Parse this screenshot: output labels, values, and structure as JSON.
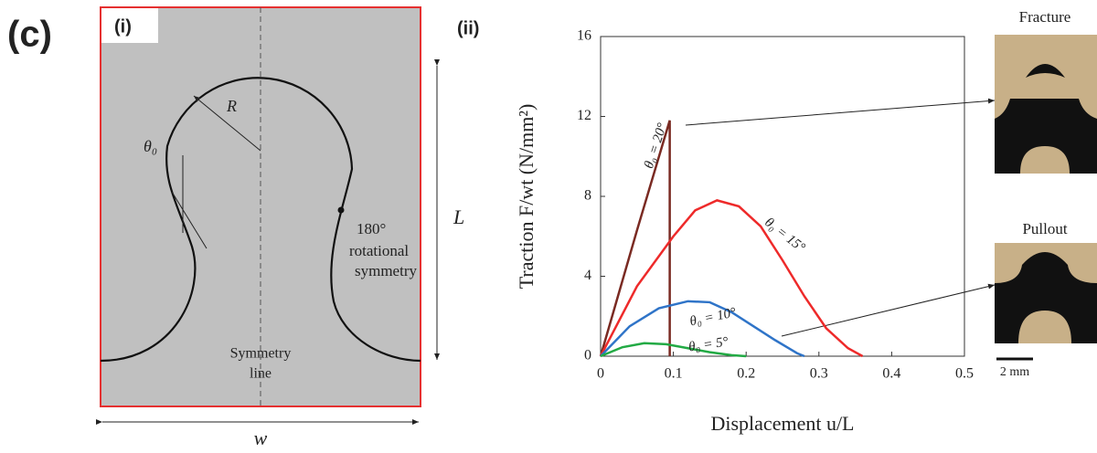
{
  "panel_label": "(c)",
  "diagram": {
    "label": "(i)",
    "radius_label": "R",
    "angle_label": "θ₀",
    "rotation_angle": "180°",
    "rotation_text_1": "rotational",
    "rotation_text_2": "symmetry",
    "symmetry_text_1": "Symmetry",
    "symmetry_text_2": "line",
    "height_label": "L",
    "width_label": "w"
  },
  "chart_data": {
    "type": "line",
    "label": "(ii)",
    "x_label": "Displacement u/L",
    "y_label": "Traction F/wt (N/mm²)",
    "xlim": [
      0,
      0.5
    ],
    "ylim": [
      0,
      16
    ],
    "xticks": [
      0,
      0.1,
      0.2,
      0.3,
      0.4,
      0.5
    ],
    "yticks": [
      0,
      4,
      8,
      12,
      16
    ],
    "series": [
      {
        "name": "θ₀ = 20°",
        "color": "#7a2a22",
        "x": [
          0,
          0.05,
          0.095,
          0.095
        ],
        "values": [
          0,
          6.3,
          11.8,
          0
        ]
      },
      {
        "name": "θ₀ = 15°",
        "color": "#ee2a2a",
        "x": [
          0,
          0.05,
          0.1,
          0.13,
          0.16,
          0.19,
          0.22,
          0.25,
          0.28,
          0.31,
          0.34,
          0.36
        ],
        "values": [
          0,
          3.5,
          6.0,
          7.3,
          7.8,
          7.5,
          6.5,
          4.8,
          3.0,
          1.4,
          0.4,
          0
        ]
      },
      {
        "name": "θ₀ = 10°",
        "color": "#2f74c8",
        "x": [
          0,
          0.04,
          0.08,
          0.12,
          0.15,
          0.18,
          0.21,
          0.24,
          0.27,
          0.28
        ],
        "values": [
          0,
          1.5,
          2.4,
          2.75,
          2.7,
          2.2,
          1.5,
          0.8,
          0.15,
          0
        ]
      },
      {
        "name": "θ₀ = 5°",
        "color": "#22aa44",
        "x": [
          0,
          0.03,
          0.06,
          0.09,
          0.12,
          0.15,
          0.18,
          0.2
        ],
        "values": [
          0,
          0.45,
          0.65,
          0.6,
          0.4,
          0.2,
          0.05,
          0
        ]
      }
    ]
  },
  "photos": {
    "fracture_label": "Fracture",
    "pullout_label": "Pullout",
    "scale_label": "2 mm"
  }
}
